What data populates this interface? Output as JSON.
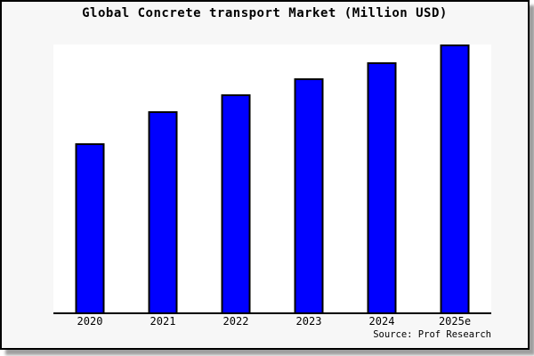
{
  "chart_data": {
    "type": "bar",
    "title": "Global Concrete transport Market (Million USD)",
    "categories": [
      "2020",
      "2021",
      "2022",
      "2023",
      "2024",
      "2025e"
    ],
    "values": [
      63,
      75,
      81.5,
      87.5,
      93.5,
      100
    ],
    "values_note": "y-axis not shown in figure; values estimated from bar heights relative to 2025e = 100",
    "xlabel": "",
    "ylabel": "",
    "ylim": [
      0,
      100
    ],
    "grid": false,
    "legend": "none",
    "bar_color": "#0000ff",
    "bar_border_color": "#000000",
    "plot_bg_color": "#ffffff",
    "figure_bg_color": "#f7f7f7",
    "figure_border_color": "#000000",
    "source": "Source: Prof Research"
  }
}
